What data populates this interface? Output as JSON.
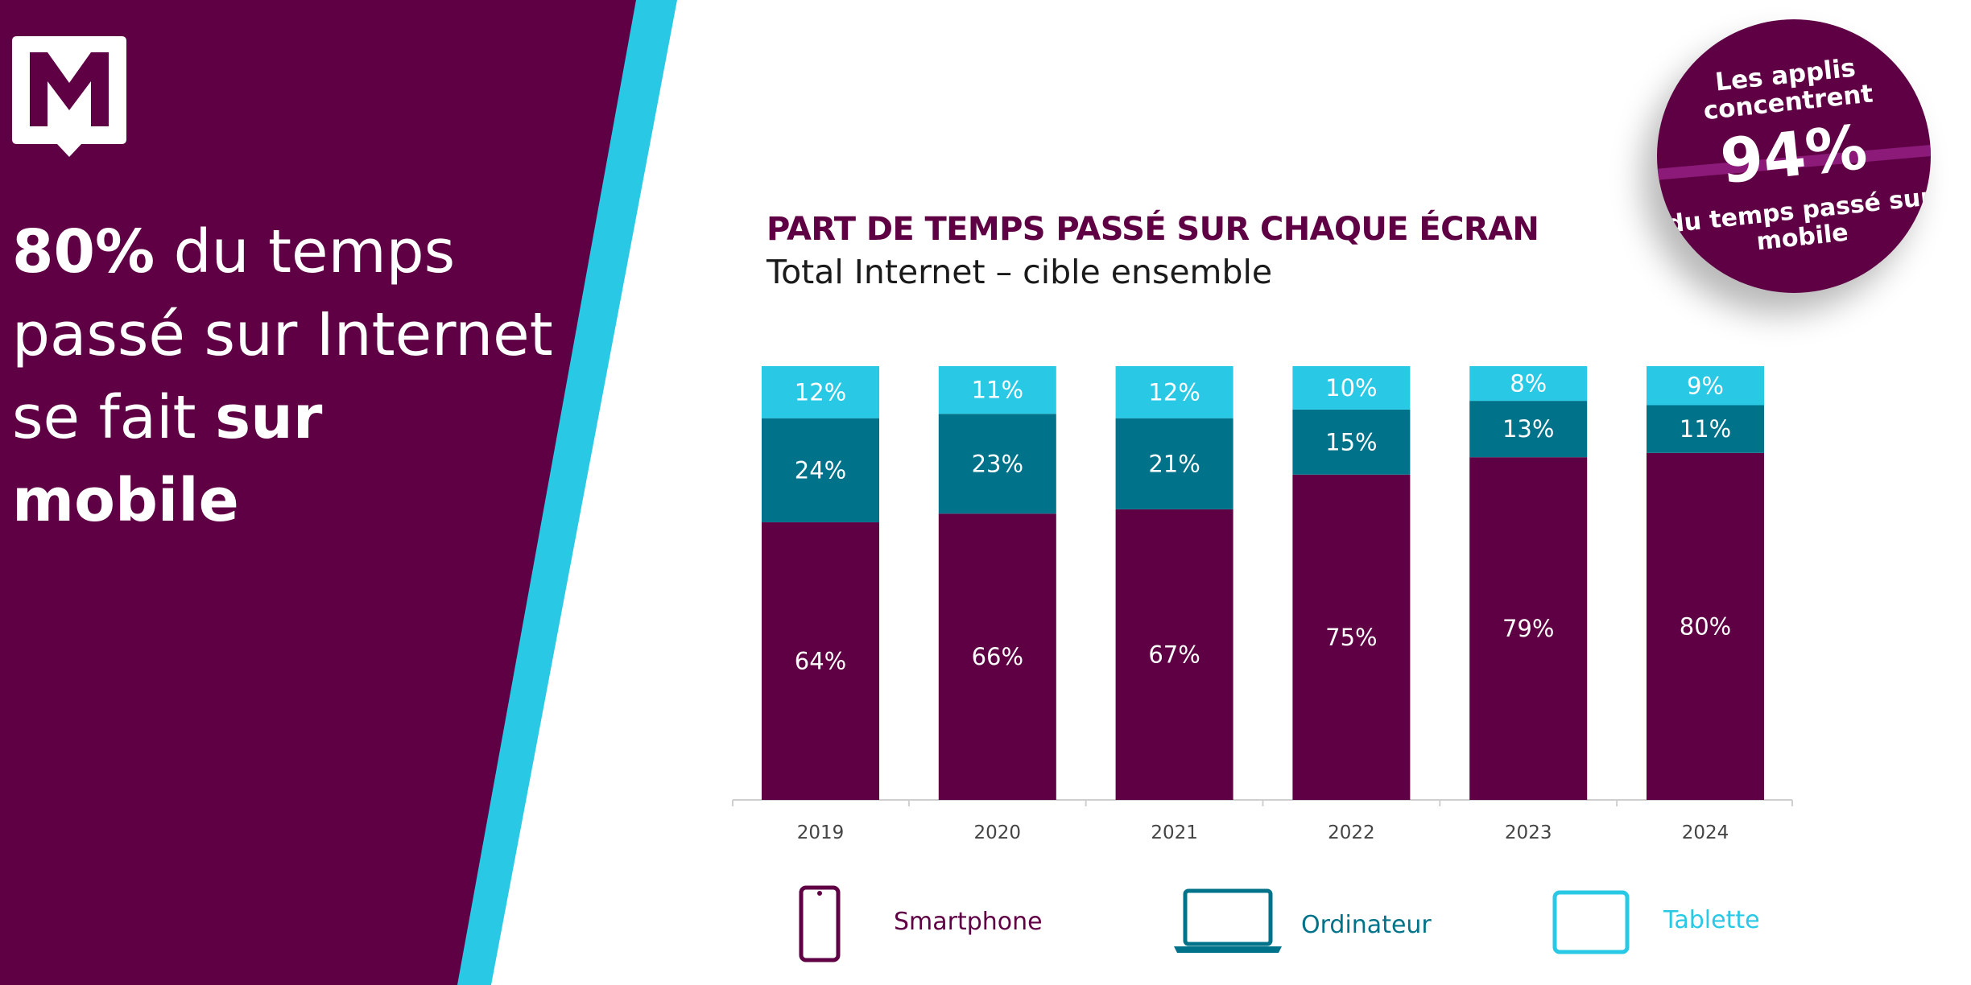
{
  "colors": {
    "brand_purple": "#5f0044",
    "accent_cyan": "#29c9e6",
    "teal": "#00728a",
    "white": "#ffffff"
  },
  "headline": {
    "bold_1": "80%",
    "text_1": " du temps passé sur Internet se fait ",
    "bold_2": "sur mobile"
  },
  "callout": {
    "line1": "Les applis concentrent",
    "value": "94%",
    "line2": "du temps passé sur mobile"
  },
  "chart_data": {
    "type": "bar",
    "stacked": true,
    "title": "PART DE TEMPS PASSÉ SUR CHAQUE ÉCRAN",
    "subtitle": "Total Internet – cible ensemble",
    "categories": [
      "2019",
      "2020",
      "2021",
      "2022",
      "2023",
      "2024"
    ],
    "series": [
      {
        "name": "Smartphone",
        "color": "#5f0044",
        "icon": "smartphone-icon",
        "values": [
          64,
          66,
          67,
          75,
          79,
          80
        ]
      },
      {
        "name": "Ordinateur",
        "color": "#00728a",
        "icon": "laptop-icon",
        "values": [
          24,
          23,
          21,
          15,
          13,
          11
        ]
      },
      {
        "name": "Tablette",
        "color": "#29c9e6",
        "icon": "tablet-icon",
        "values": [
          12,
          11,
          12,
          10,
          8,
          9
        ]
      }
    ],
    "value_suffix": "%",
    "legend_position": "bottom",
    "grid": false
  }
}
